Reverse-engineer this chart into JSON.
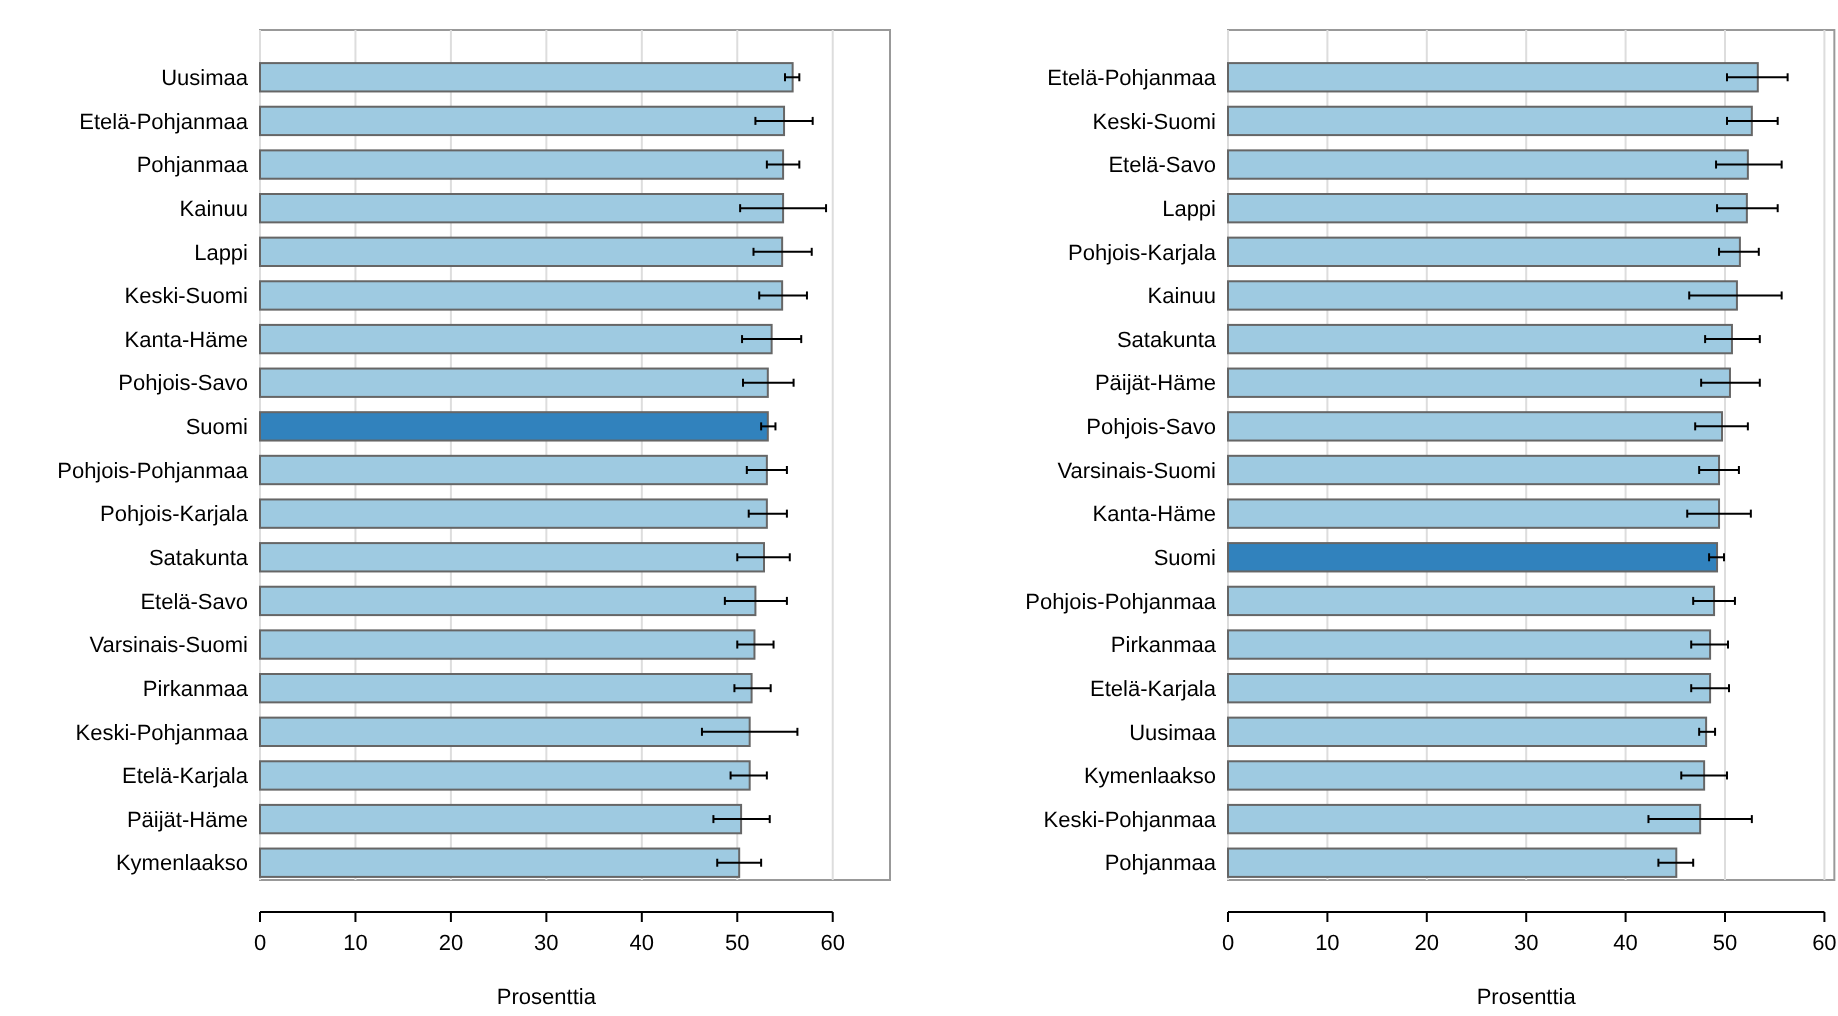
{
  "chart_data": [
    {
      "type": "bar",
      "orientation": "horizontal",
      "xlabel": "Prosenttia",
      "xlim": [
        0,
        66
      ],
      "xticks": [
        0,
        10,
        20,
        30,
        40,
        50,
        60
      ],
      "grid": "x",
      "categories": [
        "Uusimaa",
        "Etelä-Pohjanmaa",
        "Pohjanmaa",
        "Kainuu",
        "Lappi",
        "Keski-Suomi",
        "Kanta-Häme",
        "Pohjois-Savo",
        "Suomi",
        "Pohjois-Pohjanmaa",
        "Pohjois-Karjala",
        "Satakunta",
        "Etelä-Savo",
        "Varsinais-Suomi",
        "Pirkanmaa",
        "Keski-Pohjanmaa",
        "Etelä-Karjala",
        "Päijät-Häme",
        "Kymenlaakso"
      ],
      "values": [
        55.8,
        54.9,
        54.8,
        54.8,
        54.7,
        54.7,
        53.6,
        53.2,
        53.2,
        53.1,
        53.1,
        52.8,
        51.9,
        51.8,
        51.5,
        51.3,
        51.3,
        50.4,
        50.2
      ],
      "errors": [
        [
          55.0,
          56.5
        ],
        [
          51.9,
          57.9
        ],
        [
          53.1,
          56.5
        ],
        [
          50.3,
          59.3
        ],
        [
          51.7,
          57.8
        ],
        [
          52.3,
          57.3
        ],
        [
          50.5,
          56.7
        ],
        [
          50.6,
          55.9
        ],
        [
          52.5,
          54.0
        ],
        [
          51.0,
          55.2
        ],
        [
          51.2,
          55.2
        ],
        [
          50.0,
          55.5
        ],
        [
          48.7,
          55.2
        ],
        [
          50.0,
          53.8
        ],
        [
          49.7,
          53.5
        ],
        [
          46.3,
          56.3
        ],
        [
          49.3,
          53.1
        ],
        [
          47.5,
          53.4
        ],
        [
          47.9,
          52.5
        ]
      ],
      "colors": [
        "#9ecae1",
        "#9ecae1",
        "#9ecae1",
        "#9ecae1",
        "#9ecae1",
        "#9ecae1",
        "#9ecae1",
        "#9ecae1",
        "#3182bd",
        "#9ecae1",
        "#9ecae1",
        "#9ecae1",
        "#9ecae1",
        "#9ecae1",
        "#9ecae1",
        "#9ecae1",
        "#9ecae1",
        "#9ecae1",
        "#9ecae1"
      ]
    },
    {
      "type": "bar",
      "orientation": "horizontal",
      "xlabel": "Prosenttia",
      "xlim": [
        0,
        61
      ],
      "xticks": [
        0,
        10,
        20,
        30,
        40,
        50,
        60
      ],
      "grid": "x",
      "categories": [
        "Etelä-Pohjanmaa",
        "Keski-Suomi",
        "Etelä-Savo",
        "Lappi",
        "Pohjois-Karjala",
        "Kainuu",
        "Satakunta",
        "Päijät-Häme",
        "Pohjois-Savo",
        "Varsinais-Suomi",
        "Kanta-Häme",
        "Suomi",
        "Pohjois-Pohjanmaa",
        "Pirkanmaa",
        "Etelä-Karjala",
        "Uusimaa",
        "Kymenlaakso",
        "Keski-Pohjanmaa",
        "Pohjanmaa"
      ],
      "values": [
        53.3,
        52.7,
        52.3,
        52.2,
        51.5,
        51.2,
        50.7,
        50.5,
        49.7,
        49.4,
        49.4,
        49.2,
        48.9,
        48.5,
        48.5,
        48.1,
        47.9,
        47.5,
        45.1
      ],
      "errors": [
        [
          50.2,
          56.3
        ],
        [
          50.2,
          55.3
        ],
        [
          49.1,
          55.7
        ],
        [
          49.2,
          55.3
        ],
        [
          49.4,
          53.4
        ],
        [
          46.4,
          55.7
        ],
        [
          48.0,
          53.5
        ],
        [
          47.6,
          53.5
        ],
        [
          47.0,
          52.3
        ],
        [
          47.4,
          51.4
        ],
        [
          46.2,
          52.6
        ],
        [
          48.4,
          49.9
        ],
        [
          46.8,
          51.0
        ],
        [
          46.6,
          50.3
        ],
        [
          46.6,
          50.4
        ],
        [
          47.4,
          49.0
        ],
        [
          45.6,
          50.2
        ],
        [
          42.3,
          52.7
        ],
        [
          43.3,
          46.8
        ]
      ],
      "colors": [
        "#9ecae1",
        "#9ecae1",
        "#9ecae1",
        "#9ecae1",
        "#9ecae1",
        "#9ecae1",
        "#9ecae1",
        "#9ecae1",
        "#9ecae1",
        "#9ecae1",
        "#9ecae1",
        "#3182bd",
        "#9ecae1",
        "#9ecae1",
        "#9ecae1",
        "#9ecae1",
        "#9ecae1",
        "#9ecae1",
        "#9ecae1"
      ]
    }
  ]
}
